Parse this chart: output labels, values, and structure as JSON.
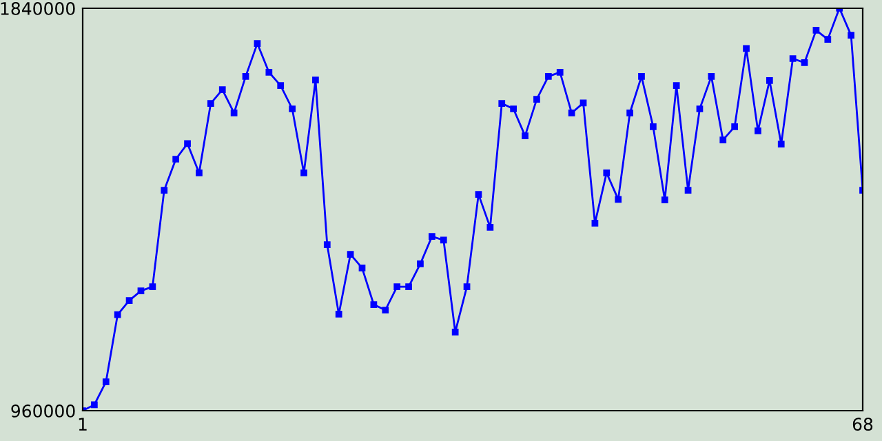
{
  "chart_data": {
    "type": "line",
    "x": [
      1,
      2,
      3,
      4,
      5,
      6,
      7,
      8,
      9,
      10,
      11,
      12,
      13,
      14,
      15,
      16,
      17,
      18,
      19,
      20,
      21,
      22,
      23,
      24,
      25,
      26,
      27,
      28,
      29,
      30,
      31,
      32,
      33,
      34,
      35,
      36,
      37,
      38,
      39,
      40,
      41,
      42,
      43,
      44,
      45,
      46,
      47,
      48,
      49,
      50,
      51,
      52,
      53,
      54,
      55,
      56,
      57,
      58,
      59,
      60,
      61,
      62,
      63,
      64,
      65,
      66,
      67,
      68
    ],
    "series": [
      {
        "color": "#0000ff",
        "values": [
          960000,
          973000,
          1023000,
          1170000,
          1201000,
          1222000,
          1231000,
          1442000,
          1510000,
          1544000,
          1480000,
          1632000,
          1662000,
          1611000,
          1691000,
          1763000,
          1700000,
          1671000,
          1620000,
          1480000,
          1683000,
          1323000,
          1171000,
          1302000,
          1272000,
          1192000,
          1180000,
          1231000,
          1231000,
          1281000,
          1341000,
          1333000,
          1132000,
          1231000,
          1433000,
          1361000,
          1632000,
          1620000,
          1561000,
          1641000,
          1691000,
          1700000,
          1611000,
          1633000,
          1370000,
          1480000,
          1422000,
          1611000,
          1691000,
          1581000,
          1421000,
          1671000,
          1442000,
          1620000,
          1691000,
          1552000,
          1581000,
          1752000,
          1572000,
          1682000,
          1543000,
          1730000,
          1721000,
          1792000,
          1772000,
          1840000,
          1781000,
          1442000
        ]
      }
    ],
    "xlim": [
      1,
      68
    ],
    "ylim": [
      960000,
      1840000
    ],
    "xticks": [
      1,
      68
    ],
    "yticks": [
      960000,
      1840000
    ],
    "marker": "square",
    "line_style": "solid"
  }
}
